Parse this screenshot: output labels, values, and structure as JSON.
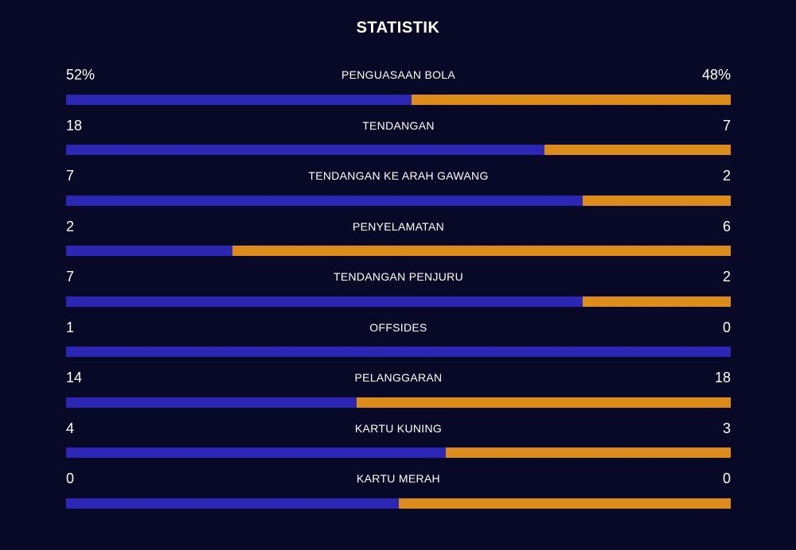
{
  "title": "STATISTIK",
  "colors": {
    "background": "#080926",
    "home": "#2c26b5",
    "away": "#dd8c1a"
  },
  "stats": [
    {
      "label": "PENGUASAAN BOLA",
      "home": "52%",
      "away": "48%",
      "home_share": 0.52
    },
    {
      "label": "TENDANGAN",
      "home": "18",
      "away": "7",
      "home_share": 0.72
    },
    {
      "label": "TENDANGAN KE ARAH GAWANG",
      "home": "7",
      "away": "2",
      "home_share": 0.7778
    },
    {
      "label": "PENYELAMATAN",
      "home": "2",
      "away": "6",
      "home_share": 0.25
    },
    {
      "label": "TENDANGAN PENJURU",
      "home": "7",
      "away": "2",
      "home_share": 0.7778
    },
    {
      "label": "OFFSIDES",
      "home": "1",
      "away": "0",
      "home_share": 1.0
    },
    {
      "label": "PELANGGARAN",
      "home": "14",
      "away": "18",
      "home_share": 0.4375
    },
    {
      "label": "KARTU KUNING",
      "home": "4",
      "away": "3",
      "home_share": 0.5714
    },
    {
      "label": "KARTU MERAH",
      "home": "0",
      "away": "0",
      "home_share": 0.5
    }
  ]
}
